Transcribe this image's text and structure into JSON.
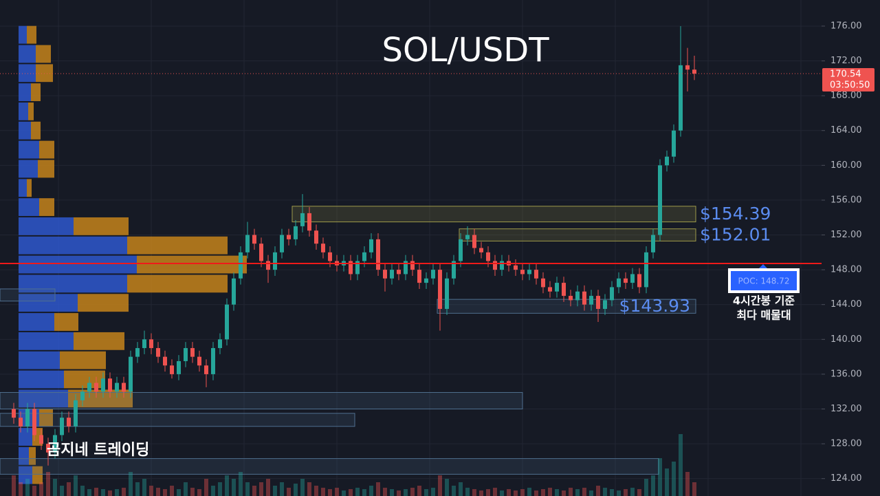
{
  "chart_data": {
    "type": "candlestick",
    "title": "SOL/USDT",
    "watermark": "곰지네 트레이딩",
    "up_color": "#26a69a",
    "down_color": "#ef5350",
    "ylim": [
      122,
      179
    ],
    "yticks": [
      {
        "value": 124,
        "label": "124.00"
      },
      {
        "value": 128,
        "label": "128.00"
      },
      {
        "value": 132,
        "label": "132.00"
      },
      {
        "value": 136,
        "label": "136.00"
      },
      {
        "value": 140,
        "label": "140.00"
      },
      {
        "value": 144,
        "label": "144.00"
      },
      {
        "value": 148,
        "label": "148.00"
      },
      {
        "value": 152,
        "label": "152.00"
      },
      {
        "value": 156,
        "label": "156.00"
      },
      {
        "value": 160,
        "label": "160.00"
      },
      {
        "value": 164,
        "label": "164.00"
      },
      {
        "value": 168,
        "label": "168.00"
      },
      {
        "value": 172,
        "label": "172.00"
      },
      {
        "value": 176,
        "label": "176.00"
      }
    ],
    "grid": true,
    "open": [
      132,
      131,
      130,
      132,
      129,
      128,
      127,
      129,
      131,
      130,
      133,
      134,
      135,
      134,
      135.5,
      134,
      135,
      134,
      138,
      139,
      140,
      139,
      138,
      137,
      136,
      137.5,
      139,
      138,
      137,
      136,
      139,
      140,
      144,
      147,
      150,
      152,
      151,
      149,
      148,
      150,
      152,
      151.5,
      153,
      154.5,
      152.5,
      151,
      150,
      149,
      148.5,
      149,
      147.5,
      149,
      150,
      151.5,
      148,
      147,
      148,
      147.5,
      149,
      148,
      146.5,
      147,
      148,
      143.5,
      147,
      149,
      151.5,
      152,
      150.5,
      150,
      149,
      148,
      149,
      148.5,
      148,
      147.5,
      148,
      147,
      146,
      145.5,
      146.5,
      145,
      144.5,
      145.5,
      144,
      145,
      143.5,
      144.5,
      146,
      147,
      146.5,
      147.5,
      146,
      150,
      152,
      160,
      161,
      164,
      171.5,
      171
    ],
    "high": [
      132.7,
      131.7,
      132.7,
      132.7,
      129.7,
      128.7,
      129.7,
      131.7,
      131.7,
      133.7,
      134.7,
      135.7,
      135.7,
      136.2,
      136.2,
      135.7,
      135.7,
      138.7,
      139.7,
      141.0,
      140.7,
      139.7,
      138.7,
      137.7,
      138.2,
      139.7,
      139.7,
      138.7,
      137.7,
      139.7,
      140.7,
      144.7,
      147.7,
      150.7,
      153.5,
      152.7,
      151.7,
      149.7,
      150.7,
      152.7,
      152.7,
      153.7,
      156.7,
      155.2,
      153.2,
      151.7,
      150.7,
      149.7,
      149.7,
      149.7,
      149.7,
      150.7,
      152.2,
      152.2,
      148.7,
      148.7,
      148.7,
      149.7,
      149.7,
      148.7,
      147.7,
      148.7,
      148.7,
      147.7,
      149.7,
      152.2,
      153.0,
      152.7,
      151.2,
      150.7,
      149.7,
      149.7,
      149.7,
      149.2,
      148.7,
      148.7,
      148.7,
      147.7,
      146.7,
      147.2,
      147.2,
      145.7,
      146.2,
      146.2,
      145.7,
      145.7,
      145.2,
      146.7,
      147.7,
      147.7,
      148.2,
      148.2,
      150.7,
      152.7,
      160.7,
      161.7,
      164.7,
      176.0,
      173.5,
      172.6
    ],
    "low": [
      130.3,
      129.3,
      129.3,
      128.3,
      127.3,
      125.5,
      126.3,
      128.3,
      129.3,
      129.3,
      132.3,
      133.3,
      133.3,
      133.3,
      133.3,
      133.3,
      133.3,
      133.3,
      137.3,
      138.3,
      138.3,
      137.3,
      136.3,
      135.5,
      135.3,
      136.8,
      137.3,
      136.3,
      134.5,
      135.3,
      138.3,
      139.3,
      143.3,
      146.3,
      149.3,
      150.3,
      148.3,
      146.5,
      147.3,
      149.3,
      150.8,
      150.8,
      152.3,
      151.8,
      150.3,
      149.3,
      148.3,
      147.8,
      147.8,
      146.8,
      146.8,
      148.3,
      149.3,
      147.3,
      145.5,
      146.3,
      146.8,
      146.8,
      147.3,
      145.8,
      145.8,
      146.3,
      141.0,
      142.8,
      146.3,
      148.3,
      150.8,
      149.8,
      149.3,
      148.3,
      147.3,
      147.3,
      147.8,
      147.3,
      146.8,
      146.8,
      146.3,
      145.3,
      144.8,
      144.8,
      144.3,
      143.8,
      143.8,
      143.3,
      143.3,
      142.0,
      142.8,
      143.8,
      145.3,
      145.8,
      145.8,
      145.3,
      145.3,
      149.3,
      151.3,
      159.3,
      160.3,
      163.3,
      168.5,
      169.8
    ],
    "close": [
      131,
      130,
      132,
      129,
      128,
      127,
      129,
      131,
      130,
      133,
      134,
      135,
      134,
      135.5,
      134,
      135,
      134,
      138,
      139,
      140,
      139,
      138,
      137,
      136,
      137.5,
      139,
      138,
      137,
      136,
      139,
      140,
      144,
      147,
      150,
      152,
      151,
      149,
      148,
      150,
      152,
      151.5,
      153,
      154.5,
      152.5,
      151,
      150,
      149,
      148.5,
      149,
      147.5,
      149,
      150,
      151.5,
      148,
      147,
      148,
      147.5,
      149,
      148,
      146.5,
      147,
      148,
      143.5,
      147,
      149,
      151.5,
      152,
      150.5,
      150,
      149,
      148,
      149,
      148.5,
      148,
      147.5,
      148,
      147,
      146,
      145.5,
      146.5,
      145,
      144.5,
      145.5,
      144,
      145,
      143.5,
      144.5,
      146,
      147,
      146.5,
      147.5,
      146,
      150,
      152,
      160,
      161,
      164,
      171.5,
      171,
      170.54
    ],
    "volume": [
      30,
      20,
      25,
      15,
      20,
      35,
      25,
      15,
      20,
      30,
      15,
      10,
      12,
      10,
      8,
      10,
      12,
      35,
      20,
      25,
      15,
      12,
      10,
      15,
      10,
      20,
      12,
      10,
      25,
      15,
      20,
      30,
      25,
      35,
      20,
      15,
      20,
      25,
      15,
      20,
      12,
      18,
      25,
      20,
      15,
      12,
      10,
      12,
      8,
      10,
      12,
      10,
      15,
      20,
      12,
      10,
      8,
      10,
      12,
      15,
      10,
      12,
      30,
      25,
      15,
      20,
      12,
      10,
      8,
      10,
      12,
      8,
      10,
      8,
      10,
      12,
      8,
      10,
      12,
      10,
      8,
      12,
      10,
      12,
      8,
      15,
      12,
      10,
      8,
      10,
      12,
      10,
      25,
      30,
      55,
      40,
      50,
      90,
      35,
      20
    ],
    "current_price": 170.54,
    "countdown": "03:50:50",
    "poc": {
      "value": 148.72,
      "label": "POC: 148.72"
    },
    "poc_note": [
      "4시간봉 기준",
      "최다 매물대"
    ],
    "zones": [
      {
        "top": 155.3,
        "bottom": 153.5,
        "color": "#9e9a4a",
        "label": "$154.39"
      },
      {
        "top": 152.7,
        "bottom": 151.3,
        "color": "#9e9a4a",
        "label": "$152.01"
      },
      {
        "top": 144.6,
        "bottom": 143.0,
        "color": "#4f6f8f",
        "label": "$143.93"
      },
      {
        "top": 133.9,
        "bottom": 132.0,
        "color": "#4f6f8f"
      },
      {
        "top": 131.5,
        "bottom": 130.0,
        "color": "#4f6f8f"
      },
      {
        "top": 126.3,
        "bottom": 124.5,
        "color": "#4f6f8f"
      },
      {
        "top": 145.8,
        "bottom": 144.4,
        "color": "#4f6f8f"
      }
    ],
    "volume_profile": {
      "prices": [
        175.0,
        172.8,
        170.6,
        168.4,
        166.2,
        164.0,
        161.8,
        159.6,
        157.4,
        155.2,
        153.0,
        150.8,
        148.6,
        146.4,
        144.2,
        142.0,
        139.8,
        137.6,
        135.4,
        133.2,
        131.0,
        128.8,
        126.6,
        124.4
      ],
      "buy": [
        12,
        25,
        25,
        18,
        14,
        18,
        30,
        28,
        12,
        30,
        80,
        158,
        172,
        158,
        86,
        52,
        80,
        60,
        66,
        72,
        30,
        20,
        15,
        20
      ],
      "sell": [
        14,
        22,
        25,
        14,
        8,
        14,
        22,
        24,
        7,
        22,
        80,
        146,
        160,
        146,
        74,
        35,
        74,
        67,
        60,
        94,
        20,
        15,
        10,
        15
      ],
      "buy_color": "#2f5bd8",
      "sell_color": "#d08a1a"
    }
  }
}
